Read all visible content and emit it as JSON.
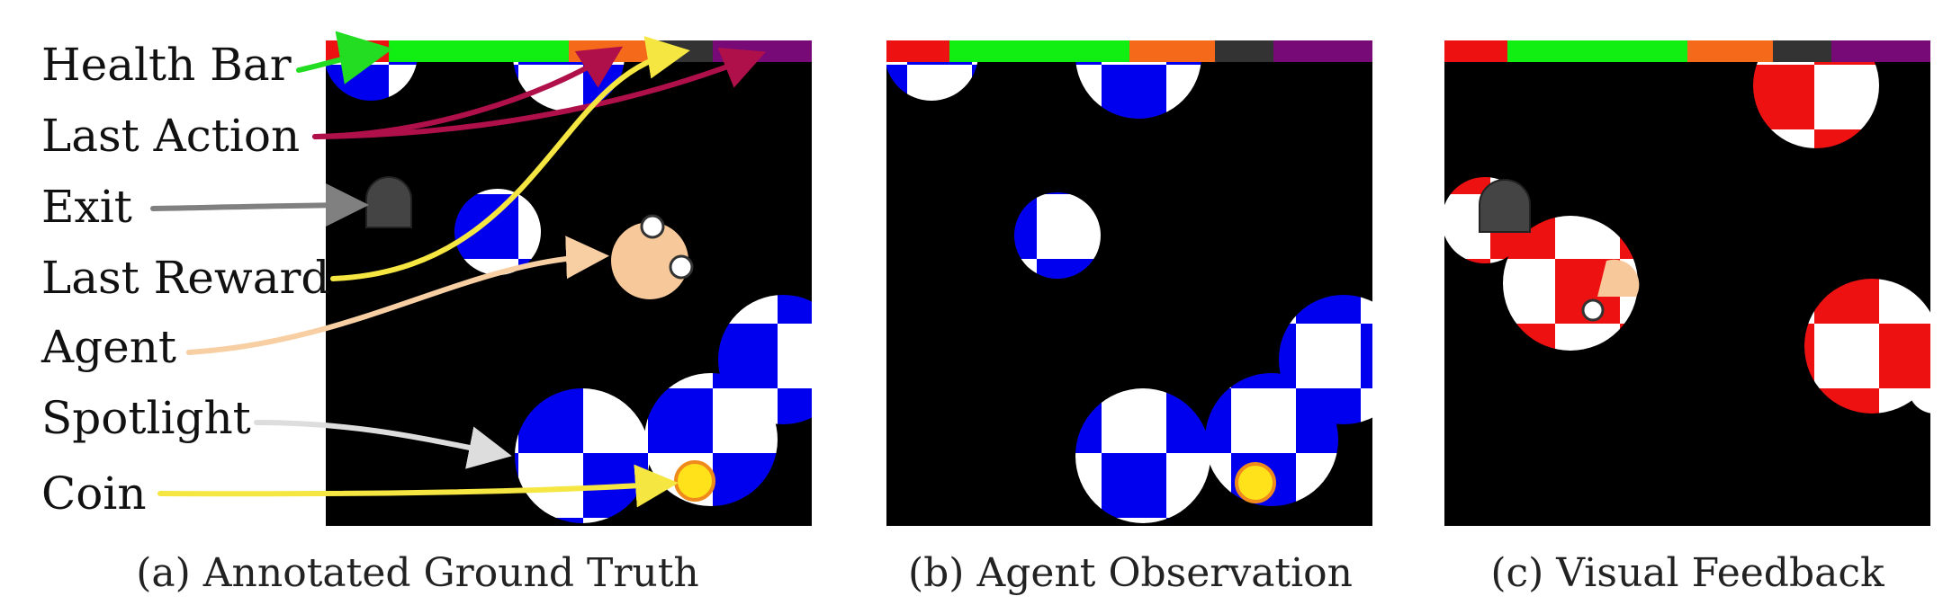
{
  "annotations": [
    {
      "label": "Health Bar",
      "arrow_color": "#22dd22"
    },
    {
      "label": "Last Action",
      "arrow_color": "#b0104a"
    },
    {
      "label": "Exit",
      "arrow_color": "#808080"
    },
    {
      "label": "Last Reward",
      "arrow_color": "#f5e642"
    },
    {
      "label": "Agent",
      "arrow_color": "#f7cfa3"
    },
    {
      "label": "Spotlight",
      "arrow_color": "#dddddd"
    },
    {
      "label": "Coin",
      "arrow_color": "#f5e642"
    }
  ],
  "panels": [
    {
      "caption": "(a) Annotated Ground Truth"
    },
    {
      "caption": "(b) Agent Observation"
    },
    {
      "caption": "(c) Visual Feedback"
    }
  ],
  "hud_colors": [
    "#ee1111",
    "#11ee11",
    "#f56a1a",
    "#333333",
    "#780a78"
  ],
  "colors": {
    "background": "#000000",
    "checker_blue": "#0000ee",
    "checker_red": "#ee1111",
    "agent": "#f7c99a",
    "coin": "#ffe21a",
    "coin_rim": "#f08a1a",
    "exit": "#444444"
  }
}
